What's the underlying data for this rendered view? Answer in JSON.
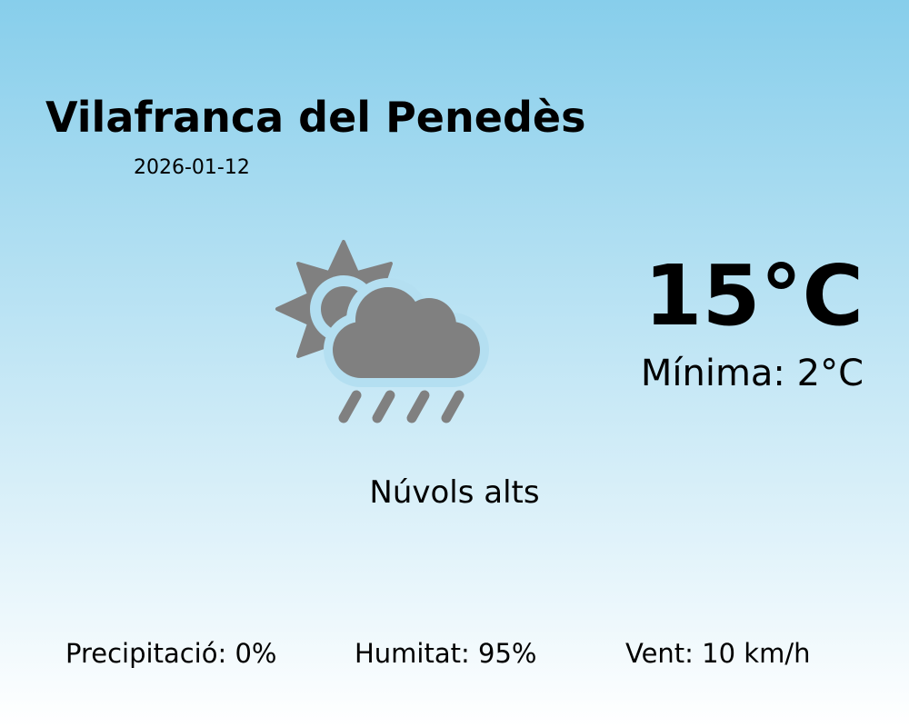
{
  "location": "Vilafranca del Penedès",
  "date": "2026-01-12",
  "temperature": "15°C",
  "minimum": "Mínima: 2°C",
  "condition": "Núvols alts",
  "condition_icon": "sun-cloud-rain-icon",
  "stats": {
    "precipitation": "Precipitació: 0%",
    "humidity": "Humitat: 95%",
    "wind": "Vent: 10 km/h"
  },
  "colors": {
    "gradient_top": "#87ceeb",
    "gradient_bottom": "#ffffff",
    "icon": "#808080"
  }
}
